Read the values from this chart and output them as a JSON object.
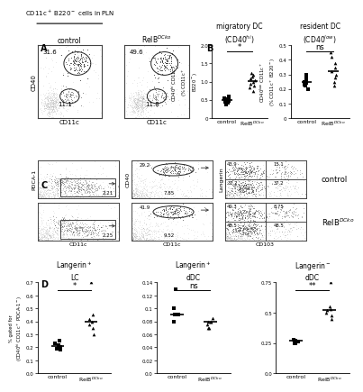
{
  "flow_A_control_vals": [
    "31.6",
    "11.1"
  ],
  "flow_A_relb_vals": [
    "49.6",
    "11.8"
  ],
  "xlabel_A": "CD11c",
  "ylabel_A": "CD40",
  "control_label": "control",
  "migratory_control": [
    0.5,
    0.55,
    0.42,
    0.48,
    0.52,
    0.38,
    0.45,
    0.6
  ],
  "migratory_relb": [
    1.1,
    0.95,
    1.2,
    1.05,
    0.85,
    1.15,
    0.9,
    1.0,
    0.75,
    1.25
  ],
  "resident_control": [
    0.22,
    0.25,
    0.28,
    0.2,
    0.24,
    0.26,
    0.23,
    0.3
  ],
  "resident_relb": [
    0.3,
    0.35,
    0.22,
    0.42,
    0.28,
    0.38,
    0.32,
    0.25,
    0.45
  ],
  "mig_sig": "*",
  "res_sig": "ns",
  "flow_C_vals": {
    "topleft": "2.21",
    "botleft": "2.25",
    "topmid_top": "29.2",
    "topmid_bot": "7.85",
    "botmid_top": "41.9",
    "botmid_bot": "9.52",
    "topright_q1": "43.9",
    "topright_q2": "15.1",
    "topright_q3": "37.2",
    "botright_q1": "40.3",
    "botright_q2": "8.75",
    "botright_q3": "48.5"
  },
  "xlabel_C_left": "CD11c",
  "ylabel_C_left": "PDCA-1",
  "xlabel_C_mid": "CD11c",
  "ylabel_C_mid": "CD40",
  "xlabel_C_right": "CD103",
  "ylabel_C_right": "Langerin",
  "langerin_lc_title": "Langerin$^+$\nLC",
  "langerin_ddc_title": "Langerin$^+$\ndDC",
  "langerin_neg_ddc_title": "Langerin$^-$\ndDC",
  "d_ylabel": "% gated for\n(CD40$^{hi}$ CD11c$^+$ PDCA-1$^-$)",
  "lc_control": [
    0.22,
    0.2,
    0.18,
    0.25,
    0.23,
    0.21,
    0.19
  ],
  "lc_relb": [
    0.7,
    0.4,
    0.38,
    0.42,
    0.35,
    0.45,
    0.3
  ],
  "lc_sig": "*",
  "lc_ylim": [
    0.0,
    0.7
  ],
  "lc_yticks": [
    0.0,
    0.1,
    0.2,
    0.3,
    0.4,
    0.5,
    0.6,
    0.7
  ],
  "ddcpos_control": [
    0.1,
    0.13,
    0.09,
    0.1,
    0.09,
    0.08,
    0.09
  ],
  "ddcpos_relb": [
    0.08,
    0.07,
    0.08,
    0.075,
    0.085,
    0.08,
    0.07
  ],
  "ddcpos_sig": "ns",
  "ddcpos_ylim": [
    0.0,
    0.14
  ],
  "ddcpos_yticks": [
    0.0,
    0.02,
    0.04,
    0.06,
    0.08,
    0.1,
    0.12,
    0.14
  ],
  "ddcneg_control": [
    0.28,
    0.25,
    0.27,
    0.26,
    0.28,
    0.27,
    0.25
  ],
  "ddcneg_relb": [
    0.75,
    0.52,
    0.48,
    0.5,
    0.55,
    0.45,
    0.53
  ],
  "ddcneg_sig": "**",
  "ddcneg_ylim": [
    0.0,
    0.75
  ],
  "ddcneg_yticks": [
    0.0,
    0.25,
    0.5,
    0.75
  ],
  "bg_color": "#ffffff"
}
